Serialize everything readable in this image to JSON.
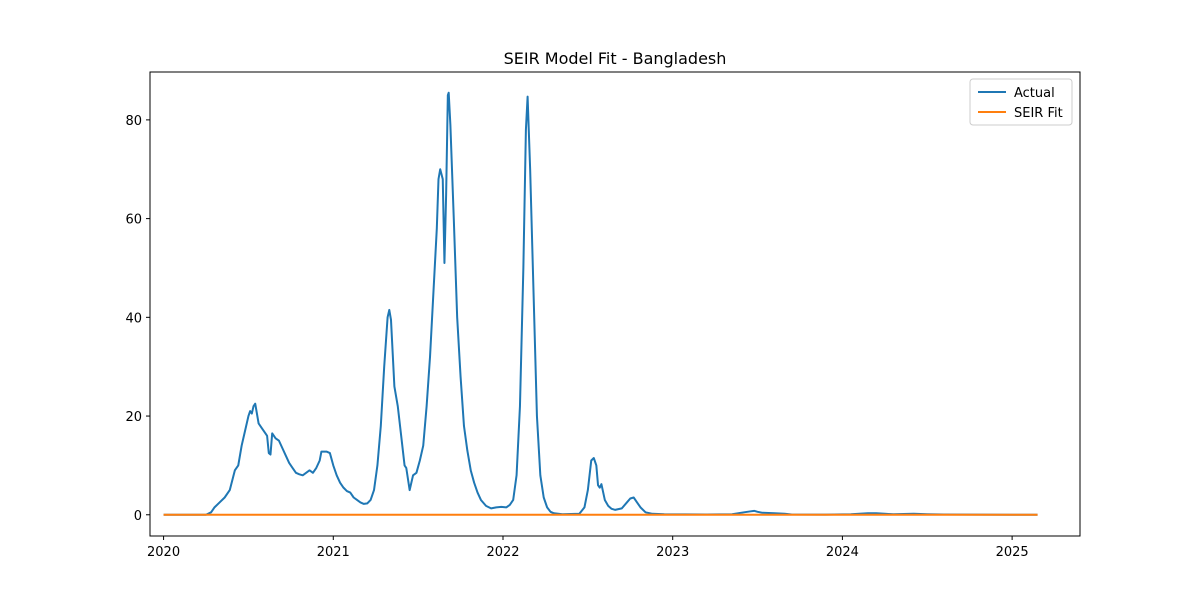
{
  "chart_data": {
    "type": "line",
    "title": "SEIR Model Fit - Bangladesh",
    "xlabel": "",
    "ylabel": "",
    "xlim": [
      2019.92,
      2025.4
    ],
    "ylim": [
      -4.3,
      89.7
    ],
    "x_ticks": [
      {
        "value": 2020,
        "label": "2020"
      },
      {
        "value": 2021,
        "label": "2021"
      },
      {
        "value": 2022,
        "label": "2022"
      },
      {
        "value": 2023,
        "label": "2023"
      },
      {
        "value": 2024,
        "label": "2024"
      },
      {
        "value": 2025,
        "label": "2025"
      }
    ],
    "y_ticks": [
      {
        "value": 0,
        "label": "0"
      },
      {
        "value": 20,
        "label": "20"
      },
      {
        "value": 40,
        "label": "40"
      },
      {
        "value": 60,
        "label": "60"
      },
      {
        "value": 80,
        "label": "80"
      }
    ],
    "grid": false,
    "legend_position": "top-right",
    "series": [
      {
        "name": "Actual",
        "color": "#1f77b4",
        "points": [
          [
            2020.0,
            0
          ],
          [
            2020.2,
            0
          ],
          [
            2020.25,
            0
          ],
          [
            2020.28,
            0.5
          ],
          [
            2020.3,
            1.5
          ],
          [
            2020.33,
            2.5
          ],
          [
            2020.36,
            3.5
          ],
          [
            2020.39,
            5
          ],
          [
            2020.42,
            9
          ],
          [
            2020.44,
            10
          ],
          [
            2020.46,
            14
          ],
          [
            2020.48,
            17
          ],
          [
            2020.5,
            20
          ],
          [
            2020.51,
            21
          ],
          [
            2020.52,
            20.5
          ],
          [
            2020.53,
            22
          ],
          [
            2020.54,
            22.5
          ],
          [
            2020.56,
            18.5
          ],
          [
            2020.58,
            17.5
          ],
          [
            2020.6,
            16.5
          ],
          [
            2020.61,
            16
          ],
          [
            2020.62,
            12.5
          ],
          [
            2020.63,
            12.2
          ],
          [
            2020.64,
            16.5
          ],
          [
            2020.66,
            15.5
          ],
          [
            2020.68,
            15
          ],
          [
            2020.7,
            13.5
          ],
          [
            2020.72,
            12
          ],
          [
            2020.74,
            10.5
          ],
          [
            2020.76,
            9.5
          ],
          [
            2020.78,
            8.5
          ],
          [
            2020.8,
            8.2
          ],
          [
            2020.82,
            8
          ],
          [
            2020.84,
            8.5
          ],
          [
            2020.86,
            9
          ],
          [
            2020.88,
            8.5
          ],
          [
            2020.9,
            9.5
          ],
          [
            2020.92,
            11
          ],
          [
            2020.93,
            12.8
          ],
          [
            2020.96,
            12.8
          ],
          [
            2020.98,
            12.5
          ],
          [
            2021.0,
            10
          ],
          [
            2021.02,
            8
          ],
          [
            2021.04,
            6.5
          ],
          [
            2021.06,
            5.5
          ],
          [
            2021.08,
            4.8
          ],
          [
            2021.1,
            4.5
          ],
          [
            2021.12,
            3.5
          ],
          [
            2021.14,
            3
          ],
          [
            2021.16,
            2.5
          ],
          [
            2021.18,
            2.2
          ],
          [
            2021.2,
            2.3
          ],
          [
            2021.22,
            3
          ],
          [
            2021.24,
            5
          ],
          [
            2021.26,
            10
          ],
          [
            2021.28,
            18
          ],
          [
            2021.3,
            30
          ],
          [
            2021.32,
            40
          ],
          [
            2021.33,
            41.5
          ],
          [
            2021.34,
            39.5
          ],
          [
            2021.36,
            26
          ],
          [
            2021.38,
            22
          ],
          [
            2021.4,
            16
          ],
          [
            2021.42,
            10
          ],
          [
            2021.43,
            9.5
          ],
          [
            2021.45,
            5
          ],
          [
            2021.47,
            8
          ],
          [
            2021.49,
            8.5
          ],
          [
            2021.51,
            11
          ],
          [
            2021.53,
            14
          ],
          [
            2021.55,
            22
          ],
          [
            2021.57,
            32
          ],
          [
            2021.59,
            45
          ],
          [
            2021.61,
            58
          ],
          [
            2021.62,
            68
          ],
          [
            2021.63,
            70
          ],
          [
            2021.645,
            68
          ],
          [
            2021.655,
            51
          ],
          [
            2021.665,
            65
          ],
          [
            2021.675,
            85
          ],
          [
            2021.68,
            85.5
          ],
          [
            2021.69,
            79
          ],
          [
            2021.71,
            60
          ],
          [
            2021.73,
            40
          ],
          [
            2021.75,
            28
          ],
          [
            2021.77,
            18
          ],
          [
            2021.79,
            13
          ],
          [
            2021.81,
            9
          ],
          [
            2021.83,
            6.5
          ],
          [
            2021.85,
            4.5
          ],
          [
            2021.87,
            3
          ],
          [
            2021.9,
            1.8
          ],
          [
            2021.93,
            1.3
          ],
          [
            2021.96,
            1.5
          ],
          [
            2021.99,
            1.6
          ],
          [
            2022.02,
            1.5
          ],
          [
            2022.04,
            2
          ],
          [
            2022.06,
            3
          ],
          [
            2022.08,
            8
          ],
          [
            2022.1,
            22
          ],
          [
            2022.12,
            50
          ],
          [
            2022.135,
            78
          ],
          [
            2022.145,
            84.7
          ],
          [
            2022.16,
            70
          ],
          [
            2022.18,
            45
          ],
          [
            2022.2,
            20
          ],
          [
            2022.22,
            8
          ],
          [
            2022.24,
            3.5
          ],
          [
            2022.26,
            1.5
          ],
          [
            2022.28,
            0.6
          ],
          [
            2022.3,
            0.3
          ],
          [
            2022.35,
            0.1
          ],
          [
            2022.45,
            0.2
          ],
          [
            2022.48,
            1.5
          ],
          [
            2022.5,
            5
          ],
          [
            2022.52,
            11
          ],
          [
            2022.535,
            11.5
          ],
          [
            2022.55,
            10
          ],
          [
            2022.56,
            6
          ],
          [
            2022.57,
            5.5
          ],
          [
            2022.58,
            6.2
          ],
          [
            2022.6,
            3
          ],
          [
            2022.62,
            1.8
          ],
          [
            2022.64,
            1.2
          ],
          [
            2022.66,
            1.0
          ],
          [
            2022.7,
            1.3
          ],
          [
            2022.73,
            2.5
          ],
          [
            2022.75,
            3.3
          ],
          [
            2022.77,
            3.5
          ],
          [
            2022.79,
            2.5
          ],
          [
            2022.81,
            1.5
          ],
          [
            2022.84,
            0.5
          ],
          [
            2022.88,
            0.2
          ],
          [
            2022.95,
            0.1
          ],
          [
            2023.2,
            0.05
          ],
          [
            2023.35,
            0.1
          ],
          [
            2023.42,
            0.5
          ],
          [
            2023.46,
            0.7
          ],
          [
            2023.48,
            0.8
          ],
          [
            2023.5,
            0.6
          ],
          [
            2023.53,
            0.4
          ],
          [
            2023.6,
            0.3
          ],
          [
            2023.66,
            0.2
          ],
          [
            2023.7,
            0.05
          ],
          [
            2023.9,
            0.02
          ],
          [
            2024.05,
            0.1
          ],
          [
            2024.1,
            0.2
          ],
          [
            2024.15,
            0.3
          ],
          [
            2024.2,
            0.3
          ],
          [
            2024.25,
            0.2
          ],
          [
            2024.3,
            0.1
          ],
          [
            2024.42,
            0.2
          ],
          [
            2024.5,
            0.1
          ],
          [
            2024.6,
            0.05
          ],
          [
            2024.8,
            0.02
          ],
          [
            2025.0,
            0.01
          ],
          [
            2025.15,
            0.01
          ]
        ]
      },
      {
        "name": "SEIR Fit",
        "color": "#ff7f0e",
        "points": [
          [
            2020.0,
            0
          ],
          [
            2025.15,
            0
          ]
        ]
      }
    ]
  }
}
